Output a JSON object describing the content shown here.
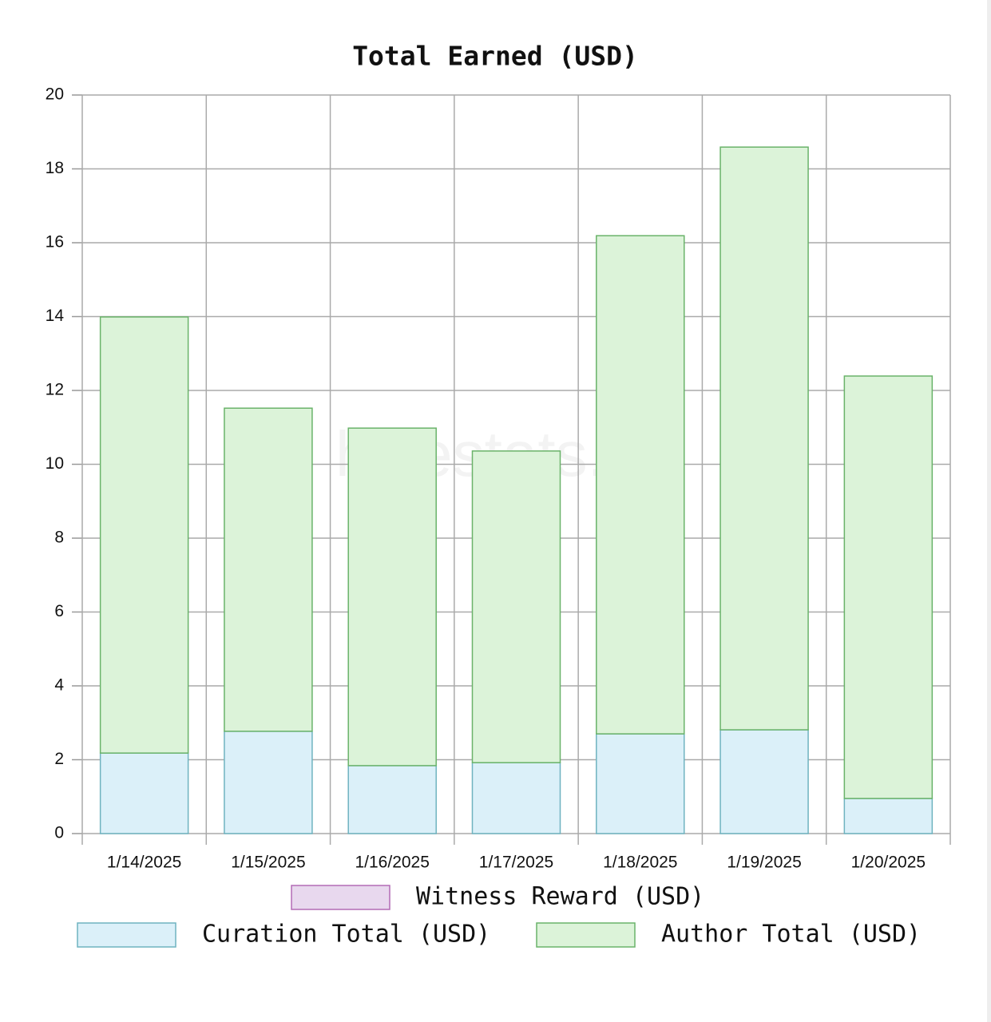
{
  "chart_data": {
    "type": "stacked_bar",
    "title": "Total Earned (USD)",
    "watermark": "hivestats.io",
    "categories": [
      "1/14/2025",
      "1/15/2025",
      "1/16/2025",
      "1/17/2025",
      "1/18/2025",
      "1/19/2025",
      "1/20/2025"
    ],
    "series": [
      {
        "name": "Witness Reward (USD)",
        "color": "#e8d8ee",
        "border": "#b36bb5",
        "values": [
          0,
          0,
          0,
          0,
          0,
          0,
          0
        ]
      },
      {
        "name": "Curation Total (USD)",
        "color": "#dbf0f9",
        "border": "#6fb3c0",
        "values": [
          2.18,
          2.77,
          1.84,
          1.92,
          2.7,
          2.81,
          0.95
        ]
      },
      {
        "name": "Author Total (USD)",
        "color": "#dcf3d9",
        "border": "#6ab36a",
        "values": [
          11.81,
          8.75,
          9.14,
          8.44,
          13.49,
          15.78,
          11.44
        ]
      }
    ],
    "ylim": [
      0,
      20
    ],
    "yticks": [
      0,
      2,
      4,
      6,
      8,
      10,
      12,
      14,
      16,
      18,
      20
    ],
    "grid": true
  }
}
